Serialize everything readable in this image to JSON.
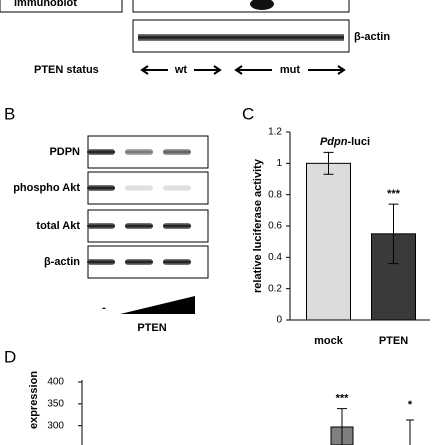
{
  "top": {
    "box_label": "immunoblot",
    "beta_actin": "β-actin",
    "status_label": "PTEN status",
    "wt": "wt",
    "mut": "mut"
  },
  "panel_b": {
    "letter": "B",
    "rows": [
      "PDPN",
      "phospho Akt",
      "total Akt",
      "β-actin"
    ],
    "minus": "-",
    "pten": "PTEN"
  },
  "chart_data": [
    {
      "type": "bar",
      "letter": "C",
      "title": "Pdpn",
      "title_suffix": "-luci",
      "ylabel": "relative luciferase activity",
      "categories": [
        "mock",
        "PTEN"
      ],
      "series": [
        {
          "values": [
            1.0,
            0.55
          ],
          "errors": [
            0.07,
            0.19
          ],
          "colors": [
            "#dcdcdc",
            "#3a3a3a"
          ]
        }
      ],
      "annotations": [
        {
          "category": 1,
          "text": "***"
        }
      ],
      "ylim": [
        0,
        1.2
      ],
      "yticks": [
        0,
        0.2,
        0.4,
        0.6,
        0.8,
        1,
        1.2
      ]
    },
    {
      "type": "bar",
      "letter": "D",
      "ylabel": "expression",
      "categories": [
        null
      ],
      "series": [
        {
          "values": [
            297
          ],
          "errors": [
            42
          ],
          "colors": [
            "#7f7f7f"
          ]
        }
      ],
      "annotations": [
        {
          "category": 0,
          "text": "***"
        },
        {
          "text": "*"
        }
      ],
      "ylim": [
        280,
        400
      ],
      "yticks": [
        300,
        350,
        400
      ]
    }
  ]
}
